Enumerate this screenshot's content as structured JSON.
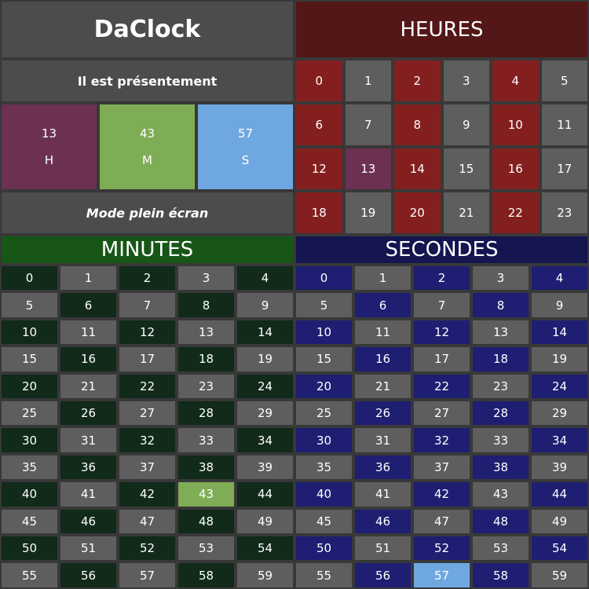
{
  "app": {
    "title": "DaClock"
  },
  "labels": {
    "now": "Il est présentement",
    "fullscreen": "Mode plein écran",
    "hours_header": "HEURES",
    "minutes_header": "MINUTES",
    "seconds_header": "SECONDES"
  },
  "current": {
    "hours": {
      "value": "13",
      "unit": "H"
    },
    "minutes": {
      "value": "43",
      "unit": "M"
    },
    "seconds": {
      "value": "57",
      "unit": "S"
    }
  },
  "grids": {
    "hours": [
      "0",
      "1",
      "2",
      "3",
      "4",
      "5",
      "6",
      "7",
      "8",
      "9",
      "10",
      "11",
      "12",
      "13",
      "14",
      "15",
      "16",
      "17",
      "18",
      "19",
      "20",
      "21",
      "22",
      "23"
    ],
    "minutes": [
      "0",
      "1",
      "2",
      "3",
      "4",
      "5",
      "6",
      "7",
      "8",
      "9",
      "10",
      "11",
      "12",
      "13",
      "14",
      "15",
      "16",
      "17",
      "18",
      "19",
      "20",
      "21",
      "22",
      "23",
      "24",
      "25",
      "26",
      "27",
      "28",
      "29",
      "30",
      "31",
      "32",
      "33",
      "34",
      "35",
      "36",
      "37",
      "38",
      "39",
      "40",
      "41",
      "42",
      "43",
      "44",
      "45",
      "46",
      "47",
      "48",
      "49",
      "50",
      "51",
      "52",
      "53",
      "54",
      "55",
      "56",
      "57",
      "58",
      "59"
    ],
    "seconds": [
      "0",
      "1",
      "2",
      "3",
      "4",
      "5",
      "6",
      "7",
      "8",
      "9",
      "10",
      "11",
      "12",
      "13",
      "14",
      "15",
      "16",
      "17",
      "18",
      "19",
      "20",
      "21",
      "22",
      "23",
      "24",
      "25",
      "26",
      "27",
      "28",
      "29",
      "30",
      "31",
      "32",
      "33",
      "34",
      "35",
      "36",
      "37",
      "38",
      "39",
      "40",
      "41",
      "42",
      "43",
      "44",
      "45",
      "46",
      "47",
      "48",
      "49",
      "50",
      "51",
      "52",
      "53",
      "54",
      "55",
      "56",
      "57",
      "58",
      "59"
    ]
  },
  "colors": {
    "hours_accent": "#841f1f",
    "minutes_accent": "#112a1a",
    "seconds_accent": "#1e1e72",
    "neutral": "#5e5e5e",
    "current_hours": "#6b3052",
    "current_minutes": "#7fad55",
    "current_seconds": "#6fa8e0"
  }
}
